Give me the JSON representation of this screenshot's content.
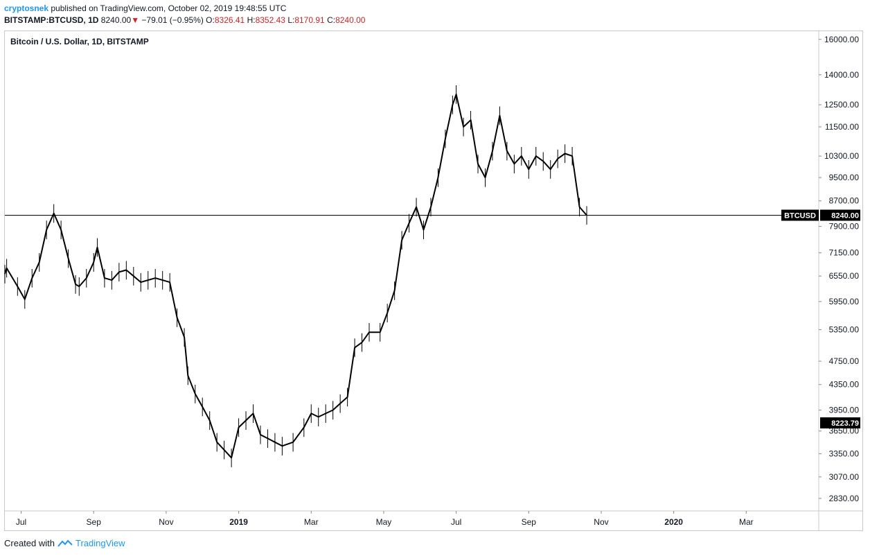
{
  "header": {
    "author": "cryptosnek",
    "published_text": "published on TradingView.com, October 02, 2019 19:48:55 UTC",
    "symbol": "BITSTAMP:BTCUSD, 1D",
    "last": "8240.00",
    "change_arrow": "▼",
    "change": "−79.01 (−0.95%)",
    "o_label": "O:",
    "o": "8326.41",
    "h_label": "H:",
    "h": "8352.43",
    "l_label": "L:",
    "l": "8170.91",
    "c_label": "C:",
    "c": "8240.00"
  },
  "footer": {
    "created_with": "Created with",
    "brand": "TradingView"
  },
  "colors": {
    "accent": "#2196f3",
    "down": "#c62828",
    "line": "#000000"
  },
  "chart_data": {
    "type": "line",
    "title": "Bitcoin / U.S. Dollar, 1D, BITSTAMP",
    "y_scale": "log",
    "ylim": [
      2700,
      16500
    ],
    "y_ticks": [
      "16000.00",
      "14000.00",
      "12500.00",
      "11500.00",
      "10300.00",
      "9500.00",
      "8700.00",
      "7900.00",
      "7150.00",
      "6550.00",
      "5950.00",
      "5350.00",
      "4750.00",
      "4350.00",
      "3950.00",
      "3650.00",
      "3350.00",
      "3070.00",
      "2830.00"
    ],
    "x_ticks": [
      "Jul",
      "Sep",
      "Nov",
      "2019",
      "Mar",
      "May",
      "Jul",
      "Sep",
      "Nov",
      "2020",
      "Mar"
    ],
    "x_tick_months": [
      1,
      3,
      5,
      7,
      9,
      11,
      13,
      15,
      17,
      19,
      21
    ],
    "x_range_months": [
      0.55,
      23.0
    ],
    "series": [
      {
        "name": "BTCUSD",
        "x_months": [
          0.55,
          0.6,
          0.9,
          1.1,
          1.3,
          1.5,
          1.7,
          1.9,
          2.1,
          2.3,
          2.5,
          2.6,
          2.8,
          3.0,
          3.1,
          3.3,
          3.5,
          3.7,
          3.9,
          4.1,
          4.3,
          4.5,
          4.7,
          4.9,
          5.1,
          5.3,
          5.5,
          5.6,
          5.8,
          6.0,
          6.2,
          6.4,
          6.6,
          6.8,
          7.0,
          7.2,
          7.4,
          7.6,
          7.8,
          8.0,
          8.2,
          8.5,
          8.8,
          9.0,
          9.2,
          9.4,
          9.6,
          9.8,
          10.0,
          10.2,
          10.4,
          10.6,
          10.9,
          11.1,
          11.3,
          11.5,
          11.7,
          11.9,
          12.1,
          12.3,
          12.5,
          12.7,
          12.9,
          13.0,
          13.2,
          13.4,
          13.6,
          13.8,
          14.0,
          14.2,
          14.4,
          14.6,
          14.8,
          15.0,
          15.2,
          15.4,
          15.6,
          15.8,
          16.0,
          16.2,
          16.4,
          16.6
        ],
        "values": [
          6600,
          6750,
          6300,
          6000,
          6500,
          6900,
          7800,
          8300,
          7800,
          7000,
          6350,
          6300,
          6500,
          6900,
          7300,
          6500,
          6450,
          6650,
          6700,
          6550,
          6400,
          6450,
          6500,
          6450,
          6400,
          5600,
          5200,
          4500,
          4200,
          4000,
          3800,
          3500,
          3400,
          3300,
          3700,
          3800,
          3900,
          3600,
          3550,
          3500,
          3450,
          3500,
          3700,
          3900,
          3850,
          3900,
          3950,
          4050,
          4150,
          5000,
          5100,
          5300,
          5300,
          5700,
          6200,
          7500,
          8000,
          8500,
          7800,
          8500,
          9500,
          11000,
          12500,
          13000,
          11500,
          11800,
          10000,
          9500,
          10500,
          12000,
          10500,
          10000,
          10300,
          9800,
          10300,
          10100,
          9800,
          10200,
          10400,
          10300,
          8500,
          8240
        ]
      }
    ],
    "last_price_label": "BTCUSD",
    "last_price": 8240.0,
    "crosshair_price": "8223.79"
  }
}
